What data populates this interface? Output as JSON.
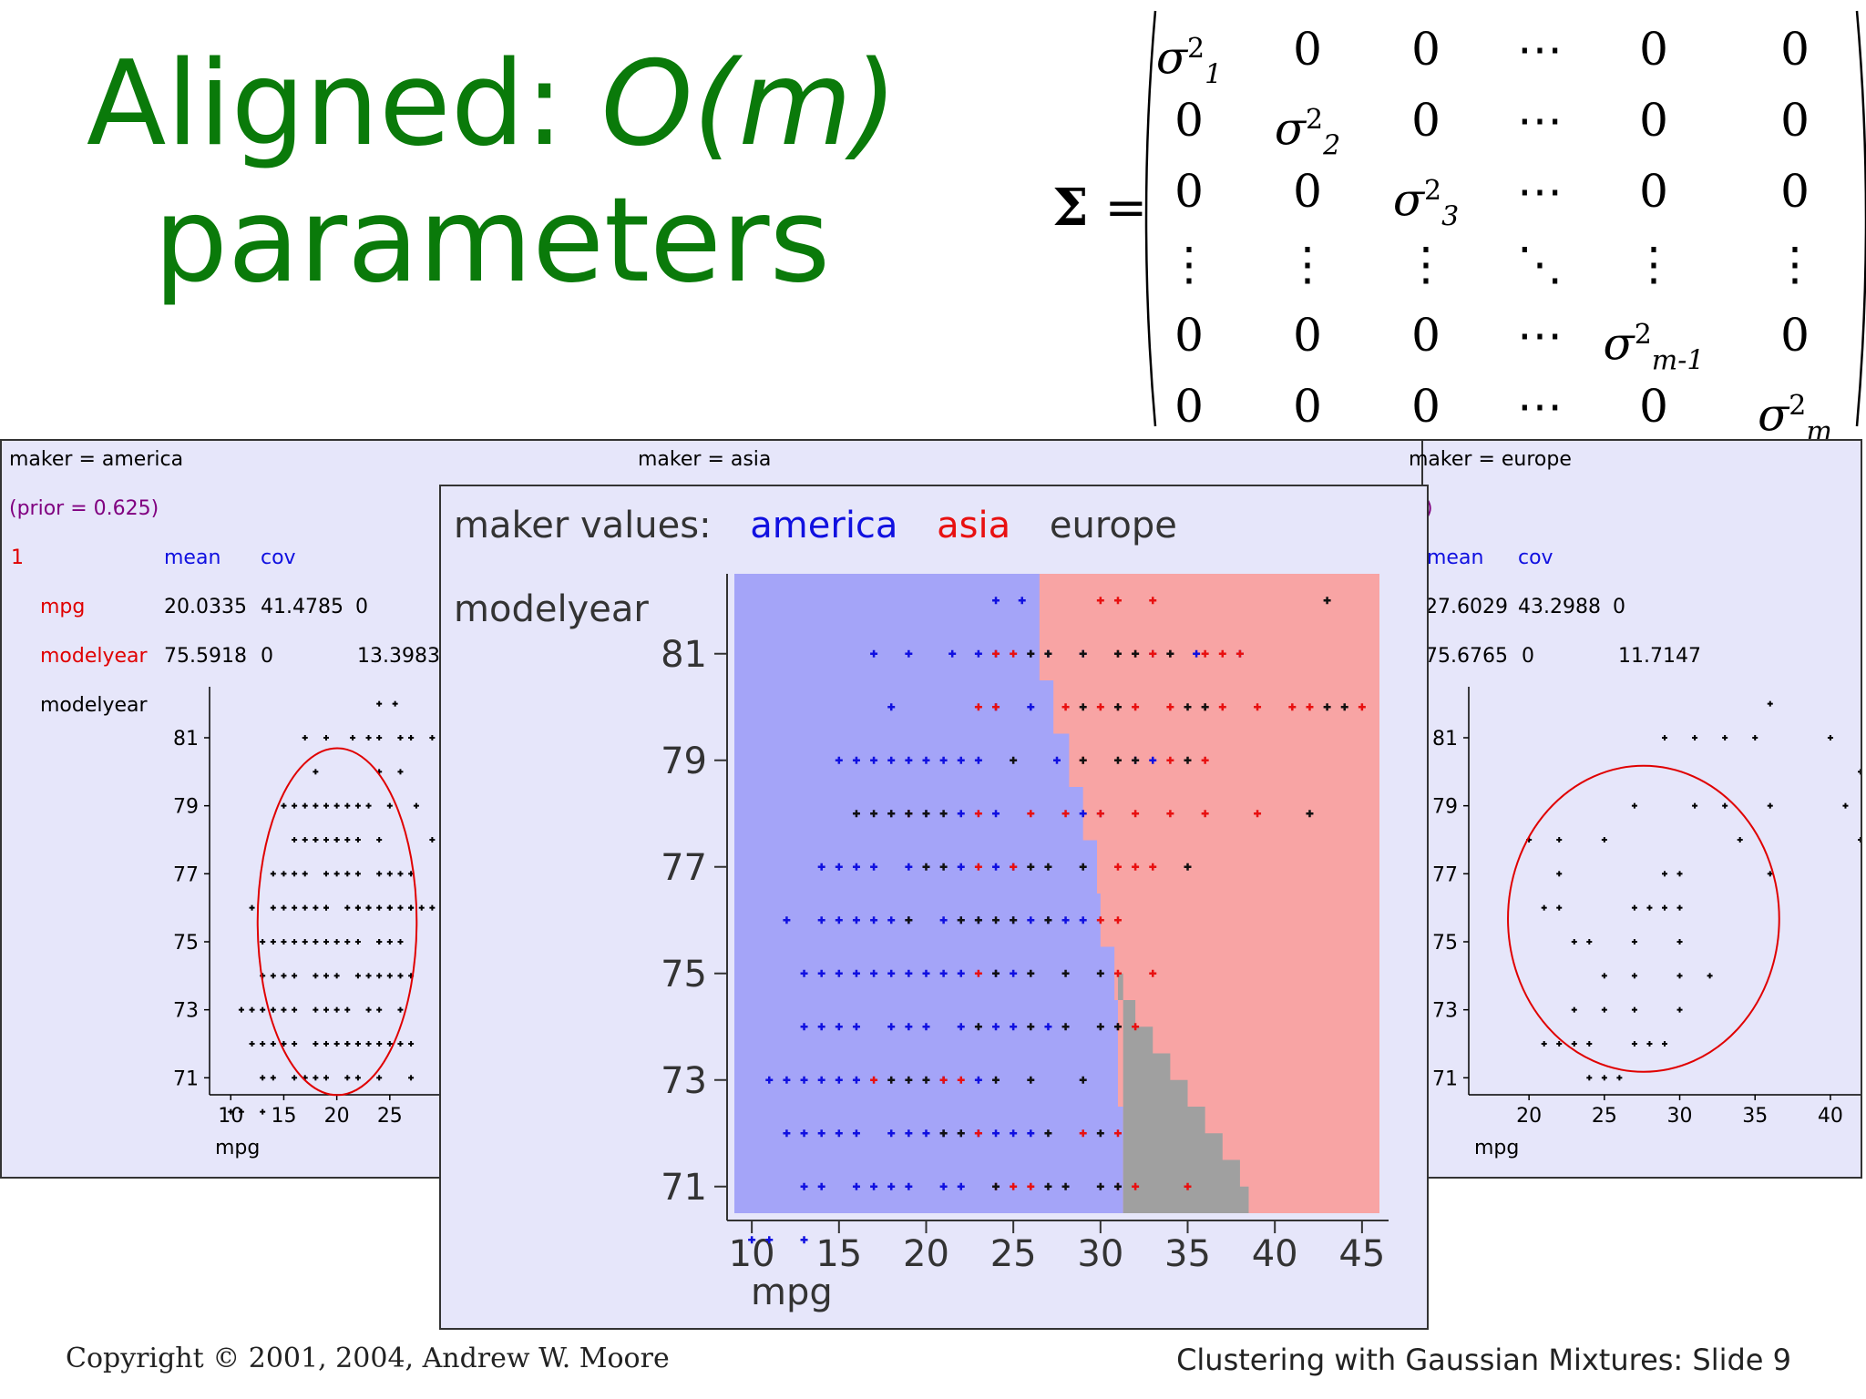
{
  "slide": {
    "title_part1": "Aligned: ",
    "title_part2": "O(m)",
    "title_line2": "parameters",
    "footer_left": "Copyright © 2001, 2004, Andrew W. Moore",
    "footer_right": "Clustering with Gaussian Mixtures: Slide 9",
    "title_color": "#0a7a0a"
  },
  "matrix": {
    "lhs": "Σ",
    "equals": "=",
    "rows": [
      [
        "σ2 1",
        "0",
        "0",
        "⋯",
        "0",
        "0"
      ],
      [
        "0",
        "σ2 2",
        "0",
        "⋯",
        "0",
        "0"
      ],
      [
        "0",
        "0",
        "σ2 3",
        "⋯",
        "0",
        "0"
      ],
      [
        "⋮",
        "⋮",
        "⋮",
        "⋱",
        "⋮",
        "⋮"
      ],
      [
        "0",
        "0",
        "0",
        "⋯",
        "σ2 m-1",
        "0"
      ],
      [
        "0",
        "0",
        "0",
        "⋯",
        "0",
        "σ2 m"
      ]
    ]
  },
  "left_panel": {
    "header": "maker = america",
    "prior": "(prior = 0.625)",
    "index": "1",
    "col_mean": "mean",
    "col_cov": "cov",
    "row1_name": "mpg",
    "row1_mean": "20.0335",
    "row1_cov1": "41.4785",
    "row1_cov2": "0",
    "row2_name": "modelyear",
    "row2_mean": "75.5918",
    "row2_cov1": "0",
    "row2_cov2": "13.3983",
    "ylabel": "modelyear",
    "xlabel": "mpg",
    "yticks": [
      "81",
      "79",
      "77",
      "75",
      "73",
      "71"
    ],
    "xticks": [
      "10",
      "15",
      "20",
      "25"
    ]
  },
  "middle_panel": {
    "header": "maker = asia"
  },
  "right_panel": {
    "header": "maker = europe",
    "prior_fragment": ")",
    "col_mean": "mean",
    "col_cov": "cov",
    "row1_mean": "27.6029",
    "row1_cov1": "43.2988",
    "row1_cov2": "0",
    "row2_mean": "75.6765",
    "row2_cov1": "0",
    "row2_cov2": "11.7147",
    "xlabel": "mpg",
    "yticks": [
      "81",
      "79",
      "77",
      "75",
      "73",
      "71"
    ],
    "xticks": [
      "20",
      "25",
      "30",
      "35",
      "40"
    ]
  },
  "front_panel": {
    "legend_label": "maker values:",
    "legend_america": "america",
    "legend_asia": "asia",
    "legend_europe": "europe",
    "ylabel": "modelyear",
    "xlabel": "mpg",
    "yticks": [
      "81",
      "79",
      "77",
      "75",
      "73",
      "71"
    ],
    "xticks": [
      "10",
      "15",
      "20",
      "25",
      "30",
      "35",
      "40",
      "45"
    ]
  },
  "colors": {
    "america": "#1010e0",
    "asia": "#e81010",
    "europe": "#111111",
    "america_region": "#a4a4f8",
    "asia_region": "#f8a4a4",
    "europe_region": "#a0a0a0",
    "panel_bg": "#e6e6fa",
    "label_red": "#e00000",
    "label_blue": "#1010e0",
    "label_purple": "#800080"
  },
  "chart_data": {
    "type": "scatter",
    "xlabel": "mpg",
    "ylabel": "modelyear",
    "xlim": [
      9,
      46
    ],
    "ylim": [
      70,
      82
    ],
    "decision_boundary_america_asia": [
      [
        26.5,
        81.5
      ],
      [
        26.5,
        81
      ],
      [
        27.3,
        80
      ],
      [
        28.2,
        79
      ],
      [
        29,
        78
      ],
      [
        29.8,
        77
      ],
      [
        30,
        76
      ],
      [
        30.8,
        75
      ],
      [
        31,
        74
      ],
      [
        31,
        73
      ],
      [
        31.3,
        72
      ],
      [
        31.3,
        71
      ],
      [
        31.3,
        70
      ]
    ],
    "europe_region_right_edge": [
      [
        31,
        74.5
      ],
      [
        32,
        74
      ],
      [
        33,
        73.5
      ],
      [
        34,
        73
      ],
      [
        35,
        72.5
      ],
      [
        36,
        72
      ],
      [
        37,
        71.5
      ],
      [
        38,
        71
      ],
      [
        38.5,
        70.5
      ],
      [
        39,
        70
      ]
    ],
    "series": [
      {
        "name": "america",
        "points": [
          [
            24,
            82
          ],
          [
            25.5,
            82
          ],
          [
            17,
            81
          ],
          [
            19,
            81
          ],
          [
            21.5,
            81
          ],
          [
            23,
            81
          ],
          [
            24,
            81
          ],
          [
            26,
            81
          ],
          [
            27,
            81
          ],
          [
            29,
            81
          ],
          [
            33,
            81
          ],
          [
            35.5,
            81
          ],
          [
            38,
            81
          ],
          [
            18,
            80
          ],
          [
            24,
            80
          ],
          [
            26,
            80
          ],
          [
            15,
            79
          ],
          [
            16,
            79
          ],
          [
            17,
            79
          ],
          [
            18,
            79
          ],
          [
            19,
            79
          ],
          [
            20,
            79
          ],
          [
            21,
            79
          ],
          [
            22,
            79
          ],
          [
            23,
            79
          ],
          [
            27.5,
            79
          ],
          [
            32,
            79
          ],
          [
            33,
            79
          ],
          [
            18,
            78
          ],
          [
            19,
            78
          ],
          [
            20,
            78
          ],
          [
            22,
            78
          ],
          [
            24,
            78
          ],
          [
            29,
            78
          ],
          [
            30,
            78
          ],
          [
            14,
            77
          ],
          [
            15,
            77
          ],
          [
            16,
            77
          ],
          [
            17,
            77
          ],
          [
            19,
            77
          ],
          [
            22,
            77
          ],
          [
            24,
            77
          ],
          [
            25,
            77
          ],
          [
            12,
            76
          ],
          [
            14,
            76
          ],
          [
            15,
            76
          ],
          [
            16,
            76
          ],
          [
            17,
            76
          ],
          [
            18,
            76
          ],
          [
            19,
            76
          ],
          [
            21,
            76
          ],
          [
            22,
            76
          ],
          [
            23,
            76
          ],
          [
            25,
            76
          ],
          [
            26,
            76
          ],
          [
            27,
            76
          ],
          [
            28,
            76
          ],
          [
            29,
            76
          ],
          [
            13,
            75
          ],
          [
            14,
            75
          ],
          [
            15,
            75
          ],
          [
            16,
            75
          ],
          [
            17,
            75
          ],
          [
            18,
            75
          ],
          [
            19,
            75
          ],
          [
            20,
            75
          ],
          [
            21,
            75
          ],
          [
            22,
            75
          ],
          [
            24,
            75
          ],
          [
            25,
            75
          ],
          [
            13,
            74
          ],
          [
            14,
            74
          ],
          [
            15,
            74
          ],
          [
            16,
            74
          ],
          [
            18,
            74
          ],
          [
            19,
            74
          ],
          [
            20,
            74
          ],
          [
            22,
            74
          ],
          [
            24,
            74
          ],
          [
            25,
            74
          ],
          [
            27,
            74
          ],
          [
            11,
            73
          ],
          [
            12,
            73
          ],
          [
            13,
            73
          ],
          [
            14,
            73
          ],
          [
            15,
            73
          ],
          [
            16,
            73
          ],
          [
            21,
            73
          ],
          [
            23,
            73
          ],
          [
            12,
            72
          ],
          [
            13,
            72
          ],
          [
            14,
            72
          ],
          [
            15,
            72
          ],
          [
            16,
            72
          ],
          [
            18,
            72
          ],
          [
            19,
            72
          ],
          [
            20,
            72
          ],
          [
            21,
            72
          ],
          [
            22,
            72
          ],
          [
            23,
            72
          ],
          [
            24,
            72
          ],
          [
            25,
            72
          ],
          [
            26,
            72
          ],
          [
            13,
            71
          ],
          [
            14,
            71
          ],
          [
            16,
            71
          ],
          [
            17,
            71
          ],
          [
            18,
            71
          ],
          [
            19,
            71
          ],
          [
            21,
            71
          ],
          [
            22,
            71
          ],
          [
            10,
            70
          ],
          [
            11,
            70
          ],
          [
            13,
            70
          ]
        ]
      },
      {
        "name": "asia",
        "points": [
          [
            30,
            82
          ],
          [
            31,
            82
          ],
          [
            33,
            82
          ],
          [
            24,
            81
          ],
          [
            25,
            81
          ],
          [
            31,
            81
          ],
          [
            32,
            81
          ],
          [
            33,
            81
          ],
          [
            34,
            81
          ],
          [
            36,
            81
          ],
          [
            37,
            81
          ],
          [
            38,
            81
          ],
          [
            23,
            80
          ],
          [
            24,
            80
          ],
          [
            28,
            80
          ],
          [
            30,
            80
          ],
          [
            31,
            80
          ],
          [
            32,
            80
          ],
          [
            34,
            80
          ],
          [
            36,
            80
          ],
          [
            37,
            80
          ],
          [
            39,
            80
          ],
          [
            41,
            80
          ],
          [
            42,
            80
          ],
          [
            45,
            80
          ],
          [
            29,
            79
          ],
          [
            34,
            79
          ],
          [
            36,
            79
          ],
          [
            19,
            78
          ],
          [
            23,
            78
          ],
          [
            26,
            78
          ],
          [
            28,
            78
          ],
          [
            30,
            78
          ],
          [
            32,
            78
          ],
          [
            34,
            78
          ],
          [
            36,
            78
          ],
          [
            39,
            78
          ],
          [
            23,
            77
          ],
          [
            25,
            77
          ],
          [
            31,
            77
          ],
          [
            32,
            77
          ],
          [
            33,
            77
          ],
          [
            30,
            76
          ],
          [
            31,
            76
          ],
          [
            31,
            75
          ],
          [
            33,
            75
          ],
          [
            23,
            75
          ],
          [
            31,
            74
          ],
          [
            32,
            74
          ],
          [
            17,
            73
          ],
          [
            21,
            73
          ],
          [
            22,
            73
          ],
          [
            23,
            72
          ],
          [
            29,
            72
          ],
          [
            31,
            72
          ],
          [
            24,
            71
          ],
          [
            25,
            71
          ],
          [
            26,
            71
          ],
          [
            31,
            71
          ],
          [
            32,
            71
          ],
          [
            35,
            71
          ]
        ]
      },
      {
        "name": "europe",
        "points": [
          [
            43,
            82
          ],
          [
            26,
            81
          ],
          [
            27,
            81
          ],
          [
            29,
            81
          ],
          [
            31,
            81
          ],
          [
            32,
            81
          ],
          [
            34,
            81
          ],
          [
            29,
            80
          ],
          [
            31,
            80
          ],
          [
            35,
            80
          ],
          [
            36,
            80
          ],
          [
            43,
            80
          ],
          [
            44,
            80
          ],
          [
            25,
            79
          ],
          [
            29,
            79
          ],
          [
            31,
            79
          ],
          [
            32,
            79
          ],
          [
            35,
            79
          ],
          [
            16,
            78
          ],
          [
            17,
            78
          ],
          [
            18,
            78
          ],
          [
            19,
            78
          ],
          [
            20,
            78
          ],
          [
            21,
            78
          ],
          [
            42,
            78
          ],
          [
            20,
            77
          ],
          [
            21,
            77
          ],
          [
            26,
            77
          ],
          [
            27,
            77
          ],
          [
            29,
            77
          ],
          [
            35,
            77
          ],
          [
            19,
            76
          ],
          [
            22,
            76
          ],
          [
            23,
            76
          ],
          [
            24,
            76
          ],
          [
            25,
            76
          ],
          [
            27,
            76
          ],
          [
            24,
            75
          ],
          [
            26,
            75
          ],
          [
            28,
            75
          ],
          [
            30,
            75
          ],
          [
            23,
            74
          ],
          [
            26,
            74
          ],
          [
            28,
            74
          ],
          [
            30,
            74
          ],
          [
            31,
            74
          ],
          [
            18,
            73
          ],
          [
            19,
            73
          ],
          [
            20,
            73
          ],
          [
            24,
            73
          ],
          [
            26,
            73
          ],
          [
            29,
            73
          ],
          [
            21,
            72
          ],
          [
            22,
            72
          ],
          [
            27,
            72
          ],
          [
            30,
            72
          ],
          [
            24,
            71
          ],
          [
            27,
            71
          ],
          [
            28,
            71
          ],
          [
            30,
            71
          ],
          [
            31,
            71
          ]
        ]
      }
    ]
  }
}
